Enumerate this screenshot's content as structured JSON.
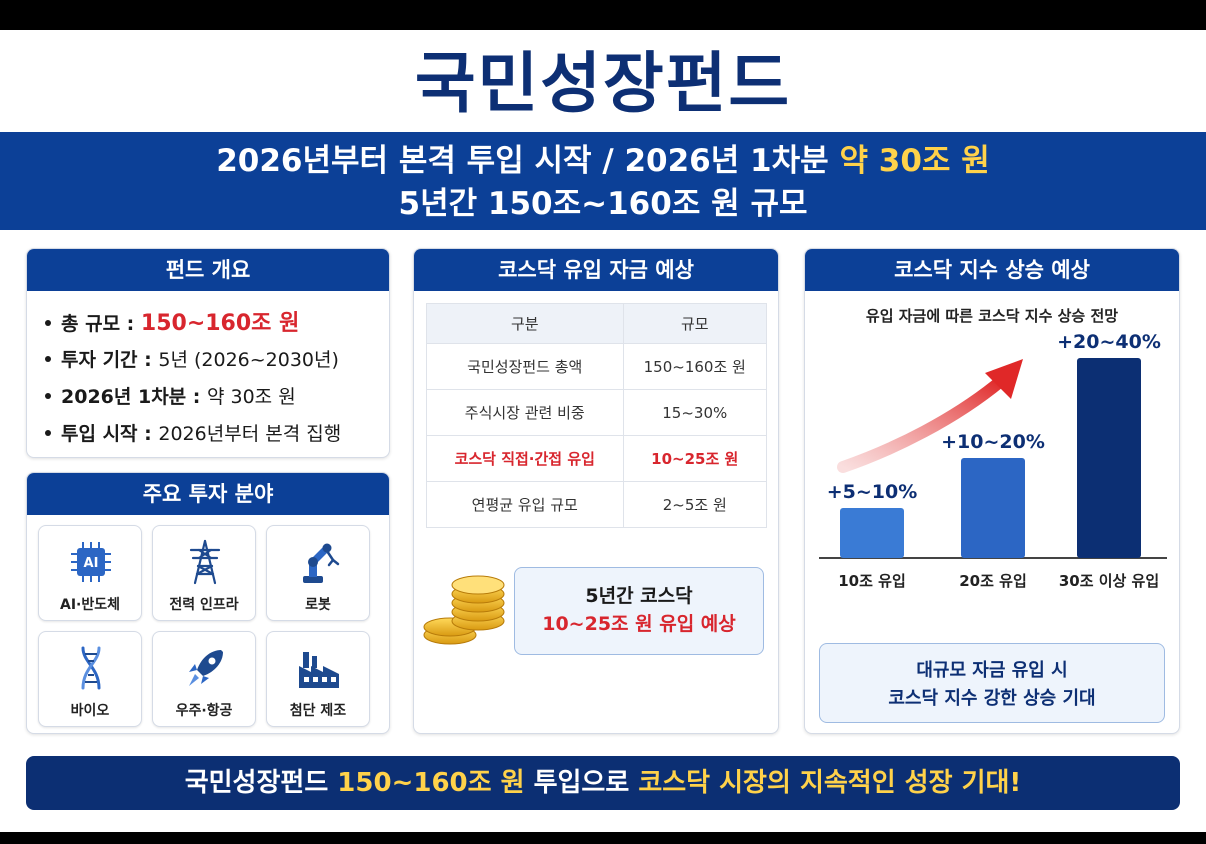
{
  "title": "국민성장펀드",
  "hero": {
    "line1_a": "2026년부터 본격 투입 시작 / 2026년 1차분 ",
    "line1_b": "약 30조 원",
    "line2": "5년간 150조~160조 원 규모"
  },
  "overview": {
    "header": "펀드 개요",
    "items": [
      {
        "label": "총 규모 : ",
        "value": "150~160조 원"
      },
      {
        "label": "투자 기간 : ",
        "value": "5년 (2026~2030년)"
      },
      {
        "label": "2026년 1차분 : ",
        "value": "약 30조 원"
      },
      {
        "label": "투입 시작 : ",
        "value": "2026년부터 본격 집행"
      }
    ]
  },
  "fields": {
    "header": "주요 투자 분야",
    "items": [
      {
        "label": "AI·반도체",
        "icon": "chip-icon"
      },
      {
        "label": "전력 인프라",
        "icon": "power-tower-icon"
      },
      {
        "label": "로봇",
        "icon": "robot-arm-icon"
      },
      {
        "label": "바이오",
        "icon": "dna-icon"
      },
      {
        "label": "우주·항공",
        "icon": "rocket-icon"
      },
      {
        "label": "첨단 제조",
        "icon": "factory-icon"
      }
    ],
    "chip_text": "AI"
  },
  "inflow": {
    "header": "코스닥 유입 자금 예상",
    "columns": [
      "구분",
      "규모"
    ],
    "rows": [
      [
        "국민성장펀드 총액",
        "150~160조 원"
      ],
      [
        "주식시장 관련 비중",
        "15~30%"
      ],
      [
        "코스닥 직접·간접 유입",
        "10~25조 원"
      ],
      [
        "연평균 유입 규모",
        "2~5조 원"
      ]
    ],
    "callout_line1": "5년간 코스닥",
    "callout_line2": "10~25조 원 유입 예상"
  },
  "index": {
    "header": "코스닥 지수 상승 예상",
    "expect_line1": "대규모 자금 유입 시",
    "expect_line2": "코스닥 지수 강한 상승 기대"
  },
  "chart_data": {
    "type": "bar",
    "title": "유입 자금에 따른 코스닥 지수 상승 전망",
    "categories": [
      "10조 유입",
      "20조 유입",
      "30조 이상 유입"
    ],
    "data_labels": [
      "+5~10%",
      "+10~20%",
      "+20~40%"
    ],
    "values": [
      7.5,
      15,
      30
    ],
    "colors": [
      "#3a7bd5",
      "#2c66c4",
      "#0c2f73"
    ]
  },
  "footer": {
    "part1": "국민성장펀드 ",
    "part2": "150~160조 원",
    "part3": " 투입으로 ",
    "part4": "코스닥 시장의 지속적인 성장 기대!"
  },
  "colors": {
    "navy": "#0c4097",
    "dark_navy": "#0c2f73",
    "red": "#d8262e",
    "yellow": "#ffd24a"
  }
}
